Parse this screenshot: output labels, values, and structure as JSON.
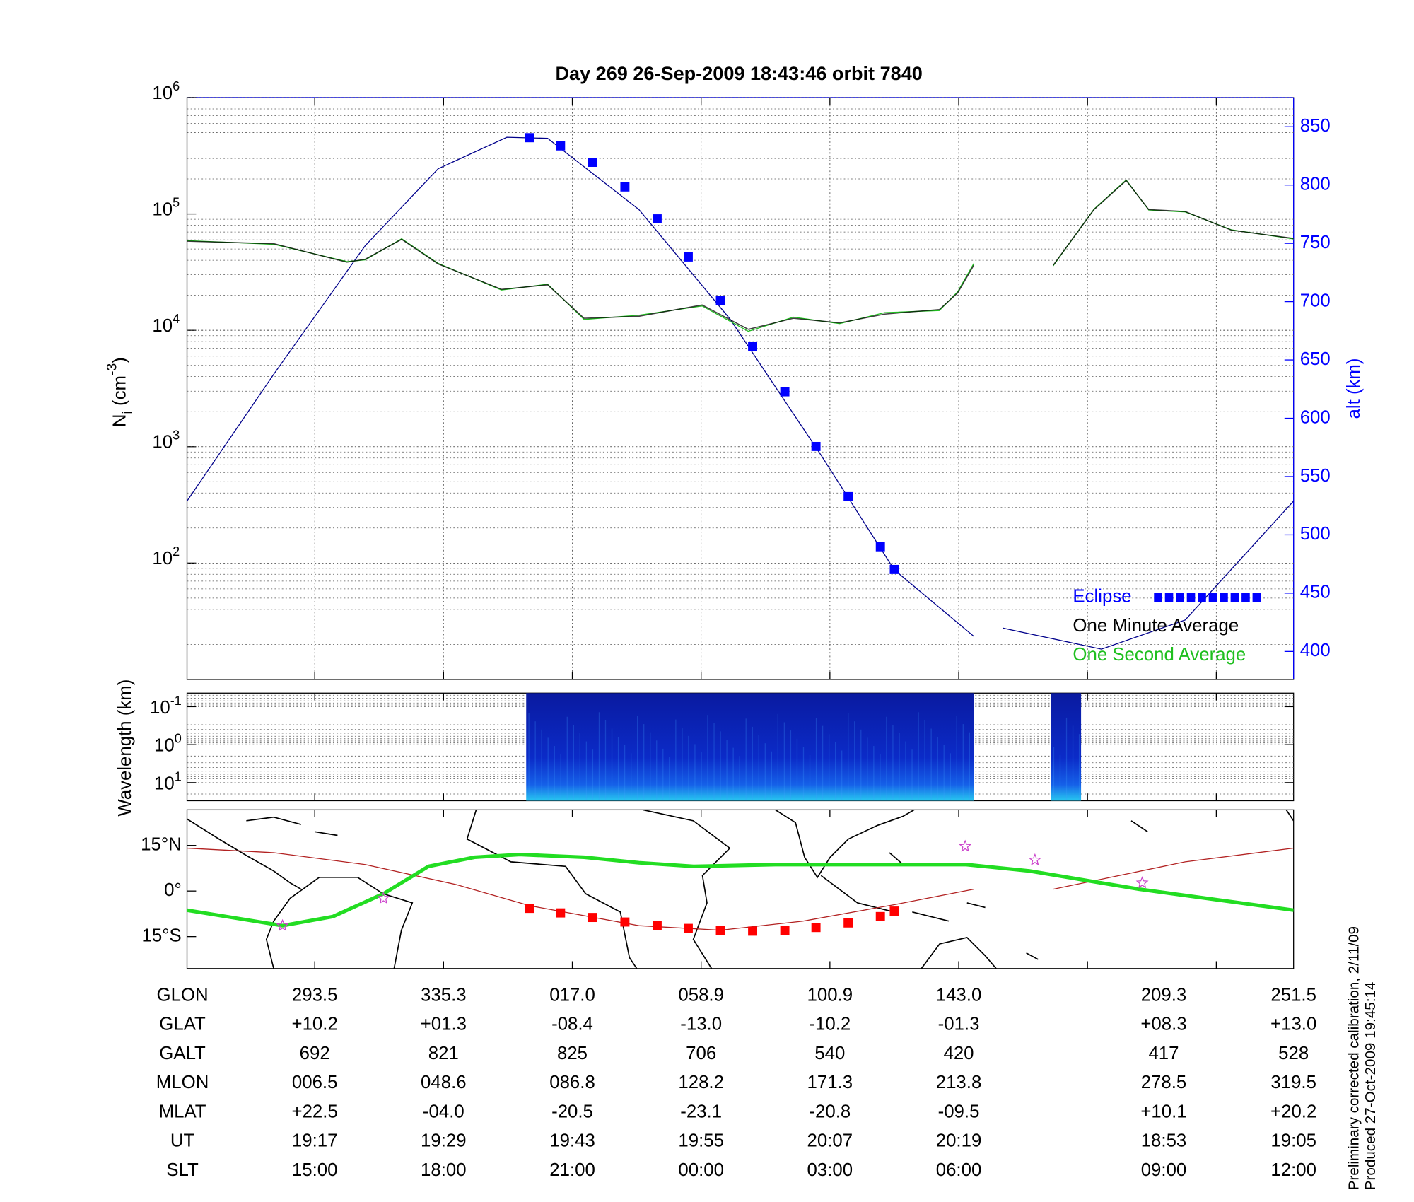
{
  "chart_data": [
    {
      "type": "line",
      "title": "Day 269  26-Sep-2009 18:43:46   orbit 7840",
      "ylabel_parts": [
        "N",
        "i",
        " (cm",
        "-3",
        ")"
      ],
      "y2label": "alt (km)",
      "xlim": [
        -11.9,
        91.2
      ],
      "xticks": [
        0,
        12,
        24,
        36,
        48,
        60,
        72,
        84
      ],
      "ylim": [
        10,
        1000000
      ],
      "yscale": "log",
      "yticks": [
        {
          "value": 100,
          "label": "10^2"
        },
        {
          "value": 1000,
          "label": "10^3"
        },
        {
          "value": 10000,
          "label": "10^4"
        },
        {
          "value": 100000,
          "label": "10^5"
        },
        {
          "value": 1000000,
          "label": "10^6"
        }
      ],
      "y2lim": [
        376,
        875
      ],
      "y2ticks": [
        400,
        450,
        500,
        550,
        600,
        650,
        700,
        750,
        800,
        850
      ],
      "grid": true,
      "legend": "lower right",
      "altitude": {
        "color": "#00008b",
        "axis": "y2",
        "x": [
          -11.9,
          -3.8,
          4.7,
          11.5,
          17.9,
          21.7,
          30.2,
          38.7,
          47.2,
          54.0,
          61.4,
          63.0,
          64.1,
          73.3,
          81.1,
          91.2
        ],
        "values": [
          529,
          638,
          748,
          814,
          841,
          840,
          779,
          685,
          568,
          470,
          413,
          null,
          420,
          402,
          427,
          529
        ]
      },
      "series": [
        {
          "name": "Eclipse",
          "color": "#0000ff",
          "axis": "y2",
          "marker": "square",
          "x": [
            20.0,
            22.9,
            25.9,
            28.9,
            31.9,
            34.8,
            37.8,
            40.8,
            43.8,
            46.7,
            49.7,
            52.7,
            54.0
          ],
          "values": [
            840.6,
            833.6,
            819.5,
            798.4,
            771,
            738.3,
            700.8,
            661.7,
            622.7,
            575.8,
            532.8,
            489.8,
            470.3
          ]
        },
        {
          "name": "One Minute Average",
          "color": "#000000",
          "x": [
            -11.9,
            -3.8,
            3.0,
            4.7,
            8.1,
            11.5,
            17.4,
            21.7,
            25.1,
            30.2,
            36.1,
            40.4,
            44.6,
            48.9,
            53.1,
            58.2,
            59.9,
            61.4,
            65.0,
            68.8,
            72.6,
            75.6,
            77.7,
            81.1,
            85.4,
            91.2
          ],
          "values": [
            58300,
            55500,
            38500,
            40800,
            60500,
            37200,
            22500,
            24600,
            12700,
            13200,
            16500,
            10200,
            12700,
            11600,
            13800,
            15100,
            20900,
            36200,
            null,
            36200,
            109000,
            194000,
            109000,
            105000,
            72500,
            61600
          ]
        },
        {
          "name": "One Second Average",
          "color": "#1fbf1f",
          "x": [
            -11.9,
            -3.8,
            3.0,
            4.7,
            8.1,
            11.5,
            17.4,
            21.7,
            25.1,
            30.2,
            36.1,
            40.4,
            44.6,
            48.9,
            53.1,
            58.2,
            59.9,
            61.4,
            65.0,
            68.8,
            72.6,
            75.6,
            77.7,
            81.1,
            85.4,
            91.2
          ],
          "values": [
            59000,
            54800,
            38900,
            40300,
            61200,
            37600,
            22200,
            24900,
            12400,
            13500,
            16200,
            9800,
            13000,
            11400,
            14200,
            14800,
            21400,
            37500,
            null,
            35800,
            110000,
            196000,
            108000,
            104000,
            73000,
            61000
          ]
        }
      ]
    },
    {
      "type": "spectrogram",
      "ylabel": "Wavelength (km)",
      "xlim": [
        -11.9,
        91.2
      ],
      "xticks": [
        0,
        12,
        24,
        36,
        48,
        60,
        72,
        84
      ],
      "ylim": [
        0.044,
        30
      ],
      "yscale": "log",
      "invert_y": true,
      "yticks": [
        {
          "value": 0.1,
          "label": "10^-1"
        },
        {
          "value": 1,
          "label": "10^0"
        },
        {
          "value": 10,
          "label": "10^1"
        }
      ],
      "blocks_x": [
        [
          19.7,
          61.4
        ],
        [
          68.6,
          71.4
        ]
      ]
    },
    {
      "type": "map",
      "xlim": [
        -11.9,
        91.2
      ],
      "xticks": [
        0,
        12,
        24,
        36,
        48,
        60,
        72,
        84
      ],
      "ylim": [
        -25.5,
        26.7
      ],
      "yticks": [
        {
          "value": 15,
          "label": "15°N"
        },
        {
          "value": 0,
          "label": "0°"
        },
        {
          "value": -15,
          "label": "15°S"
        }
      ],
      "track": {
        "color": "#b22222",
        "x": [
          -11.9,
          -3.8,
          4.7,
          13.2,
          20.0,
          30.2,
          37.8,
          45.5,
          54.0,
          61.4,
          65.0,
          68.8,
          81.1,
          91.2
        ],
        "values": [
          14.1,
          12.6,
          8.7,
          2.1,
          -4.8,
          -11.4,
          -12.9,
          -9.9,
          -4.5,
          0.6,
          null,
          0.6,
          9.6,
          14.1
        ]
      },
      "eclipse": {
        "color": "#ff0000",
        "x": [
          20.0,
          22.9,
          25.9,
          28.9,
          31.9,
          34.8,
          37.8,
          40.8,
          43.8,
          46.7,
          49.7,
          52.7,
          54.0
        ],
        "values": [
          -5.7,
          -7.2,
          -8.7,
          -10.2,
          -11.4,
          -12.3,
          -12.9,
          -13.2,
          -12.9,
          -12.0,
          -10.5,
          -8.4,
          -6.6
        ]
      },
      "dip_equator": {
        "color": "#22dd22",
        "x": [
          -11.9,
          -3.0,
          1.7,
          6.4,
          10.6,
          14.9,
          19.1,
          25.1,
          30.2,
          35.3,
          42.9,
          55.6,
          60.7,
          66.6,
          76.8,
          91.2
        ],
        "values": [
          -6.3,
          -11.4,
          -8.4,
          -0.9,
          8.1,
          11.1,
          12.0,
          11.1,
          9.3,
          8.1,
          8.7,
          8.7,
          8.7,
          6.6,
          0.6,
          -6.3
        ]
      },
      "stars": {
        "color": "#cc44cc",
        "x": [
          -3.0,
          6.4,
          60.6,
          67.1,
          77.1
        ],
        "values": [
          -11.4,
          -2.4,
          14.7,
          10.2,
          2.7
        ]
      }
    }
  ],
  "table": {
    "x": [
      0,
      12,
      24,
      36,
      48,
      60,
      79.1,
      91.2
    ],
    "row_labels": [
      "GLON",
      "GLAT",
      "GALT",
      "MLON",
      "MLAT",
      "UT",
      "SLT"
    ],
    "rows": [
      [
        "293.5",
        "335.3",
        "017.0",
        "058.9",
        "100.9",
        "143.0",
        "209.3",
        "251.5"
      ],
      [
        "+10.2",
        "+01.3",
        "-08.4",
        "-13.0",
        "-10.2",
        "-01.3",
        "+08.3",
        "+13.0"
      ],
      [
        "692",
        "821",
        "825",
        "706",
        "540",
        "420",
        "417",
        "528"
      ],
      [
        "006.5",
        "048.6",
        "086.8",
        "128.2",
        "171.3",
        "213.8",
        "278.5",
        "319.5"
      ],
      [
        "+22.5",
        "-04.0",
        "-20.5",
        "-23.1",
        "-20.8",
        "-09.5",
        "+10.1",
        "+20.2"
      ],
      [
        "19:17",
        "19:29",
        "19:43",
        "19:55",
        "20:07",
        "20:19",
        "18:53",
        "19:05"
      ],
      [
        "15:00",
        "18:00",
        "21:00",
        "00:00",
        "03:00",
        "06:00",
        "09:00",
        "12:00"
      ]
    ]
  },
  "footer": [
    "Preliminary corrected calibration, 2/11/09",
    "Produced 27-Oct-2009 19:45:14"
  ]
}
